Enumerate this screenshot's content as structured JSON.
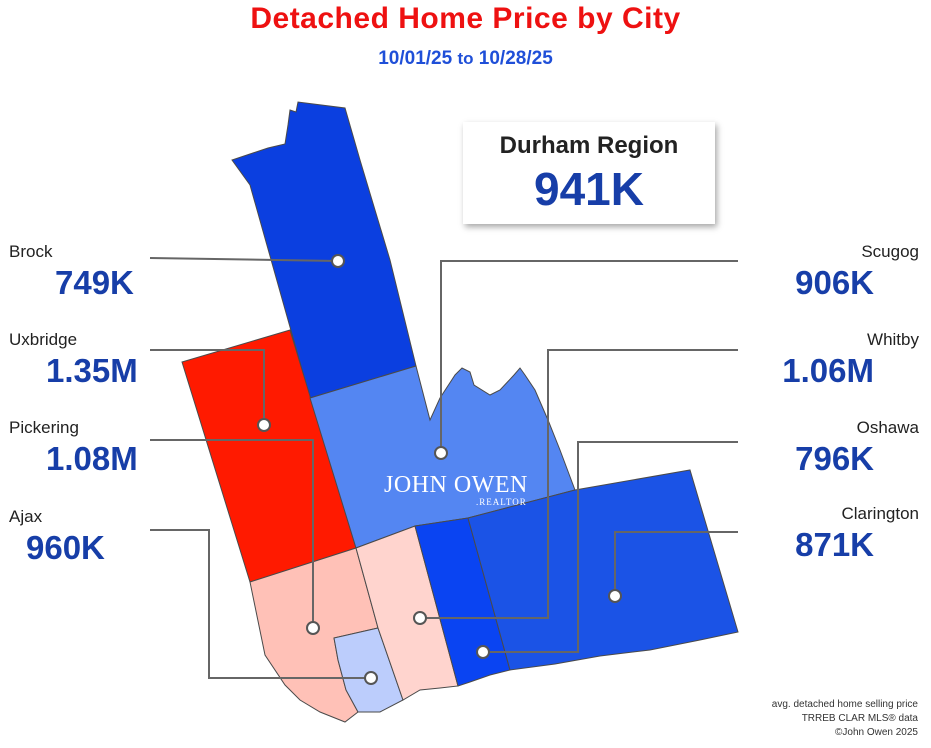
{
  "title": "Detached Home Price by City",
  "date_range": {
    "start": "10/01/25",
    "connector": "to",
    "end": "10/28/25"
  },
  "region": {
    "name": "Durham Region",
    "price": "941K"
  },
  "cities": {
    "brock": {
      "name": "Brock",
      "price": "749K",
      "color": "#0b3fe0"
    },
    "uxbridge": {
      "name": "Uxbridge",
      "price": "1.35M",
      "color": "#ff1a00"
    },
    "pickering": {
      "name": "Pickering",
      "price": "1.08M",
      "color": "#ffc1b7"
    },
    "ajax": {
      "name": "Ajax",
      "price": "960K",
      "color": "#bccdfc"
    },
    "scugog": {
      "name": "Scugog",
      "price": "906K",
      "color": "#5486f2"
    },
    "whitby": {
      "name": "Whitby",
      "price": "1.06M",
      "color": "#ffd4ce"
    },
    "oshawa": {
      "name": "Oshawa",
      "price": "796K",
      "color": "#0a44f2"
    },
    "clarington": {
      "name": "Clarington",
      "price": "871K",
      "color": "#1b53e6"
    }
  },
  "logo": {
    "name": "JOHN OWEN",
    "subtitle": ".REALTOR"
  },
  "footer": {
    "line1": "avg. detached home selling price",
    "line2": "TRREB CLAR MLS® data",
    "line3": "©John Owen 2025"
  }
}
